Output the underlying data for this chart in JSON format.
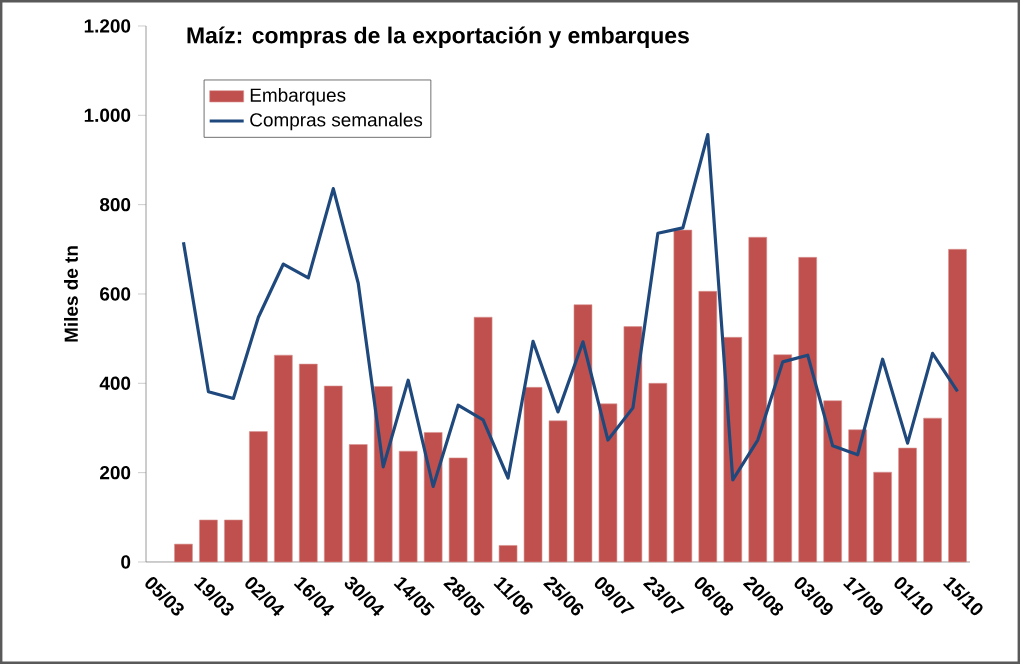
{
  "chart_data": {
    "type": "bar",
    "title": "Maíz: compras de la exportación y embarques",
    "ylabel": "Miles de tn",
    "categories": [
      "05/03",
      null,
      "19/03",
      null,
      "02/04",
      null,
      "16/04",
      null,
      "30/04",
      null,
      "14/05",
      null,
      "28/05",
      null,
      "11/06",
      null,
      "25/06",
      null,
      "09/07",
      null,
      "23/07",
      null,
      "06/08",
      null,
      "20/08",
      null,
      "03/09",
      null,
      "17/09",
      null,
      "01/10",
      null,
      "15/10"
    ],
    "series": [
      {
        "name": "Embarques",
        "color": "#c0504d",
        "values": [
          null,
          40,
          94,
          94,
          292,
          463,
          443,
          394,
          263,
          393,
          248,
          290,
          233,
          548,
          37,
          391,
          316,
          576,
          354,
          527,
          400,
          743,
          606,
          503,
          727,
          464,
          682,
          361,
          296,
          201,
          255,
          322,
          700
        ]
      },
      {
        "name": "Compras semanales",
        "type": "line",
        "color": "#1f497d",
        "values": [
          null,
          716,
          381,
          366,
          548,
          667,
          636,
          836,
          624,
          213,
          407,
          169,
          351,
          318,
          188,
          494,
          336,
          493,
          273,
          345,
          736,
          748,
          957,
          184,
          273,
          448,
          463,
          260,
          240,
          454,
          266,
          467,
          382
        ]
      }
    ],
    "ylim": [
      0,
      1200
    ],
    "yticks": [
      0,
      200,
      400,
      600,
      800,
      {
        "value": 1000,
        "label": "1.000"
      },
      {
        "value": 1200,
        "label": "1.200"
      }
    ],
    "legend": "top left",
    "marker": "none",
    "line_style": "solid"
  }
}
